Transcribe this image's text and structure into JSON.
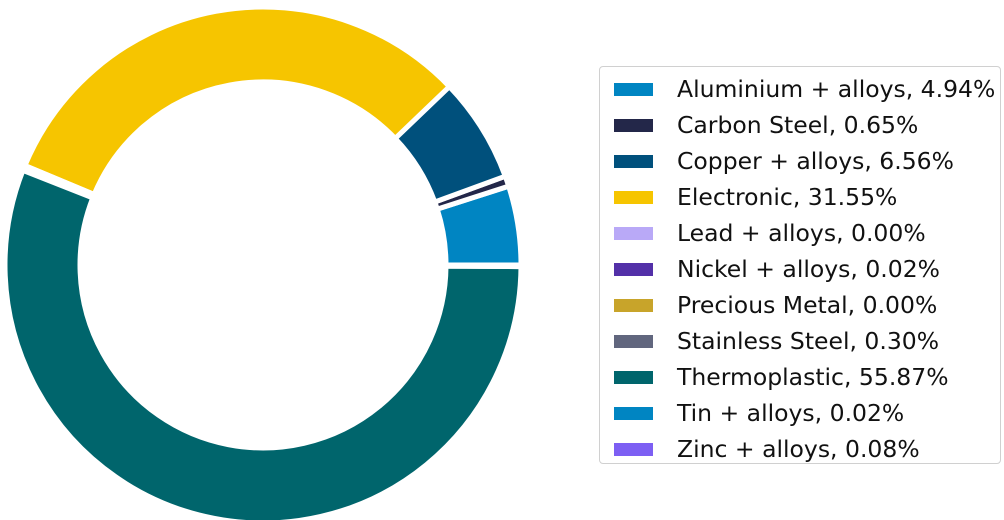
{
  "chart_data": {
    "type": "pie",
    "variant": "donut",
    "start_angle_deg": 0,
    "direction": "counterclockwise",
    "legend_position": "right",
    "series": [
      {
        "name": "Aluminium + alloys",
        "value": 4.94,
        "color": "#0085c2",
        "label": "Aluminium + alloys, 4.94%"
      },
      {
        "name": "Carbon Steel",
        "value": 0.65,
        "color": "#232749",
        "label": "Carbon Steel, 0.65%"
      },
      {
        "name": "Copper + alloys",
        "value": 6.56,
        "color": "#00507c",
        "label": "Copper + alloys, 6.56%"
      },
      {
        "name": "Electronic",
        "value": 31.55,
        "color": "#f6c500",
        "label": "Electronic, 31.55%"
      },
      {
        "name": "Lead + alloys",
        "value": 0.0,
        "color": "#b9a9f7",
        "label": "Lead + alloys, 0.00%"
      },
      {
        "name": "Nickel + alloys",
        "value": 0.02,
        "color": "#5330a8",
        "label": "Nickel + alloys, 0.02%"
      },
      {
        "name": "Precious Metal",
        "value": 0.0,
        "color": "#c8a42a",
        "label": "Precious Metal, 0.00%"
      },
      {
        "name": "Stainless Steel",
        "value": 0.3,
        "color": "#61667e",
        "label": "Stainless Steel, 0.30%"
      },
      {
        "name": "Thermoplastic",
        "value": 55.87,
        "color": "#00656c",
        "label": "Thermoplastic, 55.87%"
      },
      {
        "name": "Tin + alloys",
        "value": 0.02,
        "color": "#0085c2",
        "label": "Tin + alloys, 0.02%"
      },
      {
        "name": "Zinc + alloys",
        "value": 0.08,
        "color": "#7d5ff3",
        "label": "Zinc + alloys, 0.08%"
      }
    ]
  }
}
